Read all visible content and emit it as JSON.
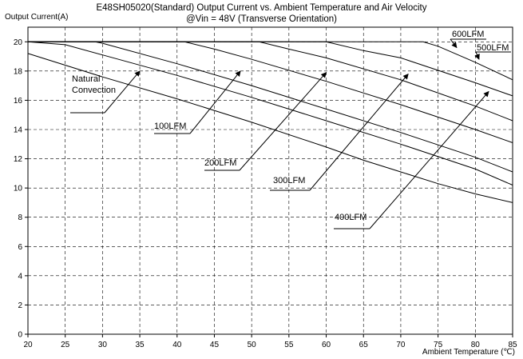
{
  "chart_data": {
    "type": "line",
    "title": "E48SH05020(Standard)  Output Current vs. Ambient Temperature and Air Velocity",
    "subtitle": "@Vin = 48V (Transverse Orientation)",
    "ylabel": "Output Current(A)",
    "xlabel": "Ambient Temperature (℃)",
    "xlim": [
      20,
      85
    ],
    "ylim": [
      0,
      21
    ],
    "xticks": [
      20,
      25,
      30,
      35,
      40,
      45,
      50,
      55,
      60,
      65,
      70,
      75,
      80,
      85
    ],
    "yticks": [
      0,
      2,
      4,
      6,
      8,
      10,
      12,
      14,
      16,
      18,
      20
    ],
    "grid": "dashed",
    "series": [
      {
        "name": "Natural Convection",
        "x": [
          20,
          30,
          40,
          50,
          60,
          65,
          70,
          75,
          80,
          85
        ],
        "y": [
          19.2,
          17.6,
          16.1,
          14.5,
          12.8,
          11.9,
          11.1,
          10.3,
          9.6,
          9.0
        ]
      },
      {
        "name": "100LFM",
        "x": [
          20,
          25,
          30,
          40,
          50,
          60,
          70,
          80,
          85
        ],
        "y": [
          20,
          19.8,
          19.1,
          17.7,
          16.2,
          14.6,
          13.0,
          11.3,
          10.2
        ]
      },
      {
        "name": "200LFM",
        "x": [
          20,
          29,
          30,
          40,
          50,
          60,
          70,
          80,
          85
        ],
        "y": [
          20,
          20,
          19.9,
          18.5,
          17.0,
          15.4,
          13.8,
          12.1,
          11.1
        ]
      },
      {
        "name": "300LFM",
        "x": [
          20,
          41,
          45,
          50,
          60,
          70,
          80,
          85
        ],
        "y": [
          20,
          20,
          19.5,
          18.8,
          17.3,
          15.7,
          14.0,
          13.1
        ]
      },
      {
        "name": "400LFM",
        "x": [
          20,
          51,
          55,
          60,
          70,
          80,
          85
        ],
        "y": [
          20,
          20,
          19.5,
          18.9,
          17.4,
          15.6,
          14.6
        ]
      },
      {
        "name": "500LFM",
        "x": [
          20,
          60,
          65,
          70,
          80,
          85
        ],
        "y": [
          20,
          20,
          19.4,
          18.9,
          17.2,
          16.3
        ]
      },
      {
        "name": "600LFM",
        "x": [
          20,
          73,
          75,
          80,
          85
        ],
        "y": [
          20,
          20,
          19.7,
          18.6,
          17.4
        ]
      }
    ],
    "annotations": [
      {
        "lines": [
          "Natural",
          "Convection"
        ],
        "x": 35,
        "y": 18.0
      },
      {
        "lines": [
          "100LFM"
        ],
        "x": 48.5,
        "y": 18.0
      },
      {
        "lines": [
          "200LFM"
        ],
        "x": 60.0,
        "y": 17.9
      },
      {
        "lines": [
          "300LFM"
        ],
        "x": 71.0,
        "y": 17.8
      },
      {
        "lines": [
          "400LFM"
        ],
        "x": 81.8,
        "y": 16.6
      },
      {
        "lines": [
          "500LFM"
        ],
        "x": 80.5,
        "y": 18.8
      },
      {
        "lines": [
          "600LFM"
        ],
        "x": 77.5,
        "y": 19.6
      }
    ]
  }
}
